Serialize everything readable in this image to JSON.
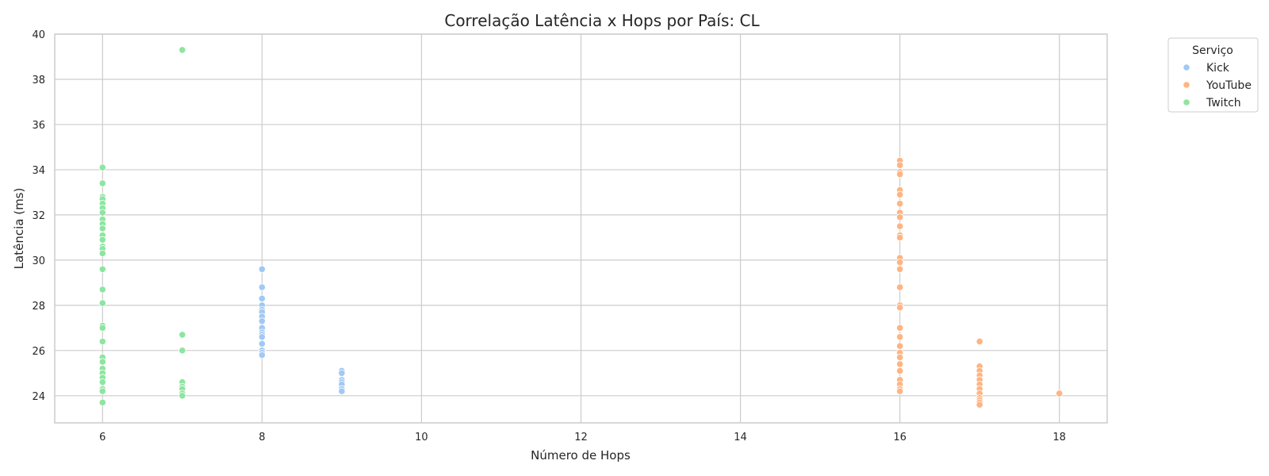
{
  "chart_data": {
    "type": "scatter",
    "title": "Correlação Latência x Hops por País: CL",
    "xlabel": "Número de Hops",
    "ylabel": "Latência (ms)",
    "xlim": [
      5.4,
      18.6
    ],
    "ylim": [
      22.8,
      40.0
    ],
    "xticks": [
      6,
      8,
      10,
      12,
      14,
      16,
      18
    ],
    "yticks": [
      24,
      26,
      28,
      30,
      32,
      34,
      36,
      38,
      40
    ],
    "grid": true,
    "legend": {
      "title": "Serviço",
      "placement": "outside-top-right"
    },
    "series": [
      {
        "name": "Kick",
        "color": "#a1c9f4",
        "points": [
          [
            8,
            29.6
          ],
          [
            8,
            28.8
          ],
          [
            8,
            28.3
          ],
          [
            8,
            28.0
          ],
          [
            8,
            27.8
          ],
          [
            8,
            27.7
          ],
          [
            8,
            27.5
          ],
          [
            8,
            27.3
          ],
          [
            8,
            27.0
          ],
          [
            8,
            26.8
          ],
          [
            8,
            26.7
          ],
          [
            8,
            26.6
          ],
          [
            8,
            26.3
          ],
          [
            8,
            26.0
          ],
          [
            8,
            25.9
          ],
          [
            8,
            25.8
          ],
          [
            9,
            25.1
          ],
          [
            9,
            25.0
          ],
          [
            9,
            24.7
          ],
          [
            9,
            24.6
          ],
          [
            9,
            24.5
          ],
          [
            9,
            24.3
          ],
          [
            9,
            24.2
          ]
        ]
      },
      {
        "name": "YouTube",
        "color": "#ffb482",
        "points": [
          [
            16,
            34.4
          ],
          [
            16,
            34.2
          ],
          [
            16,
            33.9
          ],
          [
            16,
            33.8
          ],
          [
            16,
            33.1
          ],
          [
            16,
            32.9
          ],
          [
            16,
            32.5
          ],
          [
            16,
            32.1
          ],
          [
            16,
            31.9
          ],
          [
            16,
            31.5
          ],
          [
            16,
            31.1
          ],
          [
            16,
            31.0
          ],
          [
            16,
            30.1
          ],
          [
            16,
            29.9
          ],
          [
            16,
            29.6
          ],
          [
            16,
            28.8
          ],
          [
            16,
            28.0
          ],
          [
            16,
            27.9
          ],
          [
            16,
            27.0
          ],
          [
            16,
            26.6
          ],
          [
            16,
            26.2
          ],
          [
            16,
            25.9
          ],
          [
            16,
            25.7
          ],
          [
            16,
            25.4
          ],
          [
            16,
            25.1
          ],
          [
            16,
            24.7
          ],
          [
            16,
            24.5
          ],
          [
            16,
            24.3
          ],
          [
            16,
            24.2
          ],
          [
            17,
            26.4
          ],
          [
            17,
            25.3
          ],
          [
            17,
            25.1
          ],
          [
            17,
            24.9
          ],
          [
            17,
            24.7
          ],
          [
            17,
            24.5
          ],
          [
            17,
            24.3
          ],
          [
            17,
            24.1
          ],
          [
            17,
            23.9
          ],
          [
            17,
            23.8
          ],
          [
            17,
            23.7
          ],
          [
            17,
            23.6
          ],
          [
            18,
            24.1
          ]
        ]
      },
      {
        "name": "Twitch",
        "color": "#8de5a1",
        "points": [
          [
            6,
            34.1
          ],
          [
            6,
            33.4
          ],
          [
            6,
            32.8
          ],
          [
            6,
            32.7
          ],
          [
            6,
            32.5
          ],
          [
            6,
            32.3
          ],
          [
            6,
            32.1
          ],
          [
            6,
            31.8
          ],
          [
            6,
            31.6
          ],
          [
            6,
            31.4
          ],
          [
            6,
            31.1
          ],
          [
            6,
            30.9
          ],
          [
            6,
            30.6
          ],
          [
            6,
            30.5
          ],
          [
            6,
            30.3
          ],
          [
            6,
            29.6
          ],
          [
            6,
            28.7
          ],
          [
            6,
            28.1
          ],
          [
            6,
            27.1
          ],
          [
            6,
            27.0
          ],
          [
            6,
            26.4
          ],
          [
            6,
            25.7
          ],
          [
            6,
            25.5
          ],
          [
            6,
            25.2
          ],
          [
            6,
            25.0
          ],
          [
            6,
            24.8
          ],
          [
            6,
            24.6
          ],
          [
            6,
            24.3
          ],
          [
            6,
            24.2
          ],
          [
            6,
            23.7
          ],
          [
            7,
            39.3
          ],
          [
            7,
            26.7
          ],
          [
            7,
            26.0
          ],
          [
            7,
            24.6
          ],
          [
            7,
            24.4
          ],
          [
            7,
            24.3
          ],
          [
            7,
            24.1
          ],
          [
            7,
            24.0
          ]
        ]
      }
    ]
  }
}
